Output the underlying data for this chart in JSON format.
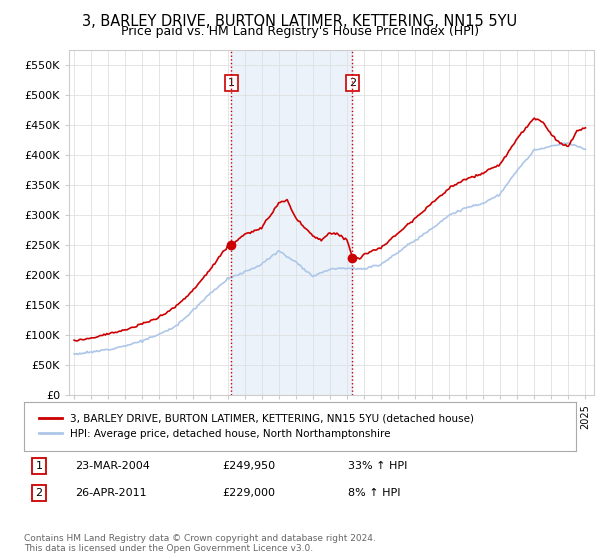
{
  "title": "3, BARLEY DRIVE, BURTON LATIMER, KETTERING, NN15 5YU",
  "subtitle": "Price paid vs. HM Land Registry's House Price Index (HPI)",
  "title_fontsize": 10.5,
  "subtitle_fontsize": 9,
  "ylabel_ticks": [
    "£0",
    "£50K",
    "£100K",
    "£150K",
    "£200K",
    "£250K",
    "£300K",
    "£350K",
    "£400K",
    "£450K",
    "£500K",
    "£550K"
  ],
  "ytick_values": [
    0,
    50000,
    100000,
    150000,
    200000,
    250000,
    300000,
    350000,
    400000,
    450000,
    500000,
    550000
  ],
  "ylim": [
    0,
    575000
  ],
  "xlim_start": 1994.7,
  "xlim_end": 2025.5,
  "hpi_line_color": "#aec6e8",
  "price_line_color": "#cc0000",
  "sale1_x": 2004.22,
  "sale1_y": 249950,
  "sale1_label": "1",
  "sale2_x": 2011.32,
  "sale2_y": 229000,
  "sale2_label": "2",
  "annotation_color": "#cc0000",
  "vline_color": "#cc0000",
  "vline_style": ":",
  "grid_color": "#e0e0e0",
  "bg_color": "#ffffff",
  "plot_bg_color": "#ffffff",
  "legend_label_red": "3, BARLEY DRIVE, BURTON LATIMER, KETTERING, NN15 5YU (detached house)",
  "legend_label_blue": "HPI: Average price, detached house, North Northamptonshire",
  "table_row1_num": "1",
  "table_row1_date": "23-MAR-2004",
  "table_row1_price": "£249,950",
  "table_row1_hpi": "33% ↑ HPI",
  "table_row2_num": "2",
  "table_row2_date": "26-APR-2011",
  "table_row2_price": "£229,000",
  "table_row2_hpi": "8% ↑ HPI",
  "footer": "Contains HM Land Registry data © Crown copyright and database right 2024.\nThis data is licensed under the Open Government Licence v3.0.",
  "shaded_region_color": "#dce9f7",
  "shaded_alpha": 0.55,
  "hpi_anchors_x": [
    1995.0,
    1996.0,
    1997.0,
    1998.0,
    1999.0,
    2000.0,
    2001.0,
    2002.0,
    2003.0,
    2004.0,
    2005.0,
    2006.0,
    2007.0,
    2008.0,
    2009.0,
    2010.0,
    2011.0,
    2012.0,
    2013.0,
    2014.0,
    2015.0,
    2016.0,
    2017.0,
    2018.0,
    2019.0,
    2020.0,
    2021.0,
    2022.0,
    2023.0,
    2024.0,
    2025.0
  ],
  "hpi_anchors_y": [
    68000,
    71000,
    76000,
    82000,
    90000,
    101000,
    115000,
    142000,
    170000,
    193000,
    205000,
    218000,
    240000,
    222000,
    198000,
    210000,
    212000,
    210000,
    218000,
    238000,
    258000,
    278000,
    300000,
    312000,
    320000,
    335000,
    375000,
    408000,
    415000,
    420000,
    410000
  ],
  "price_anchors_x": [
    1995.0,
    1996.0,
    1997.0,
    1998.0,
    1999.0,
    2000.0,
    2001.0,
    2002.0,
    2003.0,
    2003.5,
    2004.0,
    2004.22,
    2005.0,
    2006.0,
    2007.0,
    2007.5,
    2008.0,
    2009.0,
    2009.5,
    2010.0,
    2010.5,
    2011.0,
    2011.32,
    2011.8,
    2012.0,
    2013.0,
    2014.0,
    2015.0,
    2016.0,
    2017.0,
    2018.0,
    2019.0,
    2020.0,
    2021.0,
    2022.0,
    2022.5,
    2023.0,
    2023.5,
    2024.0,
    2024.5,
    2025.0
  ],
  "price_anchors_y": [
    90000,
    95000,
    102000,
    108000,
    118000,
    130000,
    148000,
    175000,
    210000,
    230000,
    248000,
    249950,
    268000,
    278000,
    320000,
    325000,
    295000,
    265000,
    258000,
    270000,
    268000,
    260000,
    229000,
    228000,
    235000,
    245000,
    270000,
    295000,
    320000,
    345000,
    360000,
    370000,
    385000,
    428000,
    462000,
    455000,
    435000,
    420000,
    415000,
    440000,
    445000
  ]
}
